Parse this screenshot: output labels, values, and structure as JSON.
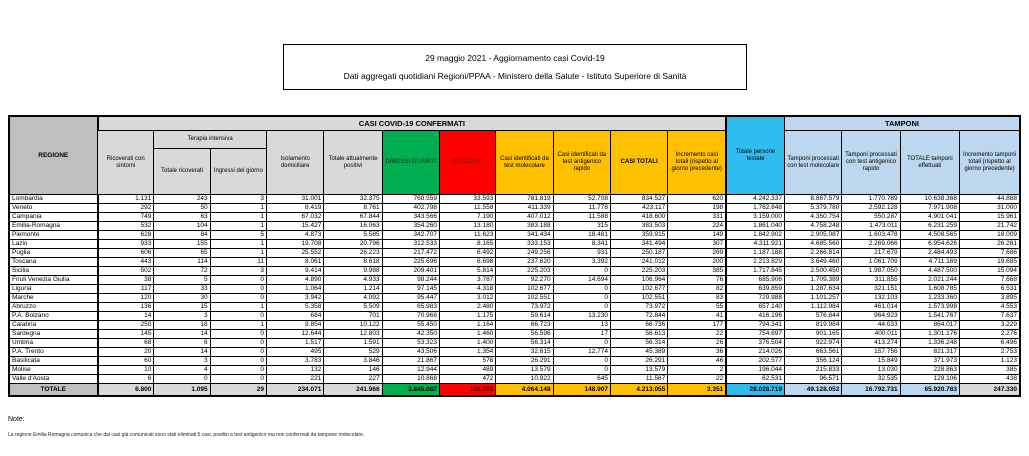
{
  "title": "29 maggio 2021 - Aggiornamento casi Covid-19",
  "subtitle": "Dati aggregati quotidiani Regioni/PPAA - Ministero della Salute - Istituto Superiore di Sanità",
  "colors": {
    "green": "#00b050",
    "red": "#ff0000",
    "orange": "#ffc000",
    "cyan": "#2fbdef",
    "light_blue": "#bdd7ee",
    "header_gray": "#d9d9d9",
    "dark_gray": "#bfbfbf"
  },
  "table": {
    "group_headers": {
      "casi": "CASI COVID-19 CONFERMATI",
      "tamponi": "TAMPONI"
    },
    "columns": {
      "regione": "REGIONE",
      "ricoverati": "Ricoverati con sintomi",
      "terapia_intensiva": "Terapia intensiva",
      "totale_ricoverati": "Totale ricoverati",
      "ingressi_giorno": "Ingressi del giorno",
      "isolamento": "Isolamento domiciliare",
      "attualmente_positivi": "Totale attualmente positivi",
      "dimessi_guariti": "DIMESSI GUARITI",
      "deceduti": "DECEDUTI",
      "casi_molecolare": "Casi identificati da test molecolare",
      "casi_antigenico": "Casi identificati da test antigenico rapido",
      "casi_totali": "CASI TOTALI",
      "incremento_casi": "Incremento casi totali (rispetto al giorno precedente)",
      "persone_testate": "Totale persone testate",
      "tamponi_molecolare": "Tamponi processati con test molecolare",
      "tamponi_antigenico": "Tamponi processati con test antigenico rapido",
      "totale_tamponi": "TOTALE tamponi effettuati",
      "incremento_tamponi": "Incremento tamponi totali (rispetto al giorno precedente)"
    },
    "col_keys": [
      "ricoverati_con_sintomi",
      "terapia_intensiva_totale",
      "terapia_intensiva_ingressi",
      "isolamento_domiciliare",
      "totale_attualmente_positivi",
      "dimessi_guariti",
      "deceduti",
      "casi_test_molecolare",
      "casi_test_antigenico",
      "casi_totali",
      "incremento_casi_totali",
      "totale_persone_testate",
      "tamponi_test_molecolare",
      "tamponi_test_antigenico",
      "totale_tamponi_effettuati",
      "incremento_tamponi_totali"
    ],
    "rows": [
      {
        "regione": "Lombardia",
        "values": [
          "1.131",
          "243",
          "3",
          "31.001",
          "32.375",
          "768.559",
          "33.593",
          "781.819",
          "52.708",
          "834.527",
          "620",
          "4.242.337",
          "8.867.579",
          "1.770.789",
          "10.638.368",
          "44.888"
        ]
      },
      {
        "regione": "Veneto",
        "values": [
          "292",
          "50",
          "1",
          "8.419",
          "8.761",
          "402.798",
          "11.558",
          "411.339",
          "11.778",
          "423.117",
          "198",
          "1.762.848",
          "5.379.780",
          "2.592.128",
          "7.971.908",
          "31.000"
        ]
      },
      {
        "regione": "Campania",
        "values": [
          "749",
          "63",
          "1",
          "67.032",
          "67.844",
          "343.566",
          "7.190",
          "407.012",
          "11.588",
          "418.600",
          "331",
          "3.159.000",
          "4.350.754",
          "550.287",
          "4.901.041",
          "15.961"
        ]
      },
      {
        "regione": "Emilia-Romagna",
        "values": [
          "532",
          "104",
          "1",
          "15.427",
          "16.063",
          "354.260",
          "13.180",
          "383.188",
          "315",
          "383.503",
          "224",
          "1.861.040",
          "4.758.248",
          "1.473.011",
          "6.231.259",
          "21.742"
        ]
      },
      {
        "regione": "Piemonte",
        "values": [
          "628",
          "84",
          "5",
          "4.873",
          "5.585",
          "342.707",
          "11.623",
          "341.434",
          "18.481",
          "359.915",
          "149",
          "1.842.902",
          "2.905.087",
          "1.603.478",
          "4.508.565",
          "18.009"
        ]
      },
      {
        "regione": "Lazio",
        "values": [
          "933",
          "155",
          "1",
          "19.708",
          "20.796",
          "312.533",
          "8.165",
          "333.153",
          "8.341",
          "341.494",
          "307",
          "4.311.921",
          "4.685.560",
          "2.269.066",
          "6.954.626",
          "26.281"
        ]
      },
      {
        "regione": "Puglia",
        "values": [
          "606",
          "65",
          "1",
          "25.552",
          "26.223",
          "217.472",
          "6.492",
          "249.256",
          "931",
          "250.187",
          "269",
          "1.187.188",
          "2.266.814",
          "217.679",
          "2.484.493",
          "7.686"
        ]
      },
      {
        "regione": "Toscana",
        "values": [
          "443",
          "114",
          "11",
          "8.061",
          "8.618",
          "225.696",
          "6.698",
          "237.620",
          "3.392",
          "241.012",
          "200",
          "2.213.829",
          "3.649.460",
          "1.061.709",
          "4.711.169",
          "19.685"
        ]
      },
      {
        "regione": "Sicilia",
        "values": [
          "502",
          "72",
          "3",
          "9.414",
          "9.988",
          "209.401",
          "5.814",
          "225.203",
          "0",
          "225.203",
          "385",
          "1.717.845",
          "2.500.450",
          "1.987.050",
          "4.487.500",
          "15.094"
        ]
      },
      {
        "regione": "Friuli Venezia Giulia",
        "values": [
          "38",
          "5",
          "0",
          "4.890",
          "4.933",
          "98.244",
          "3.787",
          "92.270",
          "14.694",
          "106.964",
          "76",
          "685.906",
          "1.709.389",
          "311.855",
          "2.021.244",
          "7.668"
        ]
      },
      {
        "regione": "Liguria",
        "values": [
          "117",
          "33",
          "0",
          "1.064",
          "1.214",
          "97.145",
          "4.318",
          "102.677",
          "0",
          "102.677",
          "82",
          "639.859",
          "1.287.634",
          "321.151",
          "1.608.785",
          "6.531"
        ]
      },
      {
        "regione": "Marche",
        "values": [
          "120",
          "30",
          "0",
          "3.942",
          "4.092",
          "95.447",
          "3.012",
          "102.551",
          "0",
          "102.551",
          "83",
          "729.988",
          "1.101.257",
          "132.103",
          "1.233.360",
          "3.895"
        ]
      },
      {
        "regione": "Abruzzo",
        "values": [
          "136",
          "15",
          "1",
          "5.358",
          "5.509",
          "65.983",
          "2.480",
          "73.972",
          "0",
          "73.972",
          "55",
          "657.140",
          "1.112.984",
          "461.014",
          "1.573.998",
          "4.553"
        ]
      },
      {
        "regione": "P.A. Bolzano",
        "values": [
          "14",
          "3",
          "0",
          "684",
          "701",
          "70.968",
          "1.175",
          "59.614",
          "13.230",
          "72.844",
          "41",
          "416.196",
          "576.844",
          "964.923",
          "1.541.767",
          "7.637"
        ]
      },
      {
        "regione": "Calabria",
        "values": [
          "250",
          "18",
          "1",
          "9.854",
          "10.122",
          "55.450",
          "1.164",
          "66.723",
          "13",
          "66.736",
          "177",
          "794.341",
          "819.984",
          "44.033",
          "864.017",
          "3.229"
        ]
      },
      {
        "regione": "Sardegna",
        "values": [
          "145",
          "14",
          "0",
          "12.644",
          "12.803",
          "42.350",
          "1.460",
          "56.596",
          "17",
          "56.613",
          "22",
          "754.697",
          "901.165",
          "400.011",
          "1.301.176",
          "2.276"
        ]
      },
      {
        "regione": "Umbria",
        "values": [
          "68",
          "6",
          "0",
          "1.517",
          "1.591",
          "53.323",
          "1.400",
          "56.314",
          "0",
          "56.314",
          "26",
          "376.504",
          "922.974",
          "413.274",
          "1.336.248",
          "6.496"
        ]
      },
      {
        "regione": "P.A. Trento",
        "values": [
          "20",
          "14",
          "0",
          "495",
          "529",
          "43.506",
          "1.354",
          "32.615",
          "12.774",
          "45.389",
          "36",
          "214.026",
          "663.561",
          "157.756",
          "821.317",
          "2.753"
        ]
      },
      {
        "regione": "Basilicata",
        "values": [
          "60",
          "3",
          "0",
          "3.783",
          "3.846",
          "21.867",
          "578",
          "26.291",
          "0",
          "26.291",
          "46",
          "202.577",
          "356.124",
          "15.849",
          "371.973",
          "1.123"
        ]
      },
      {
        "regione": "Molise",
        "values": [
          "10",
          "4",
          "0",
          "132",
          "146",
          "12.944",
          "489",
          "13.579",
          "0",
          "13.579",
          "2",
          "196.044",
          "215.833",
          "13.030",
          "228.863",
          "385"
        ]
      },
      {
        "regione": "Valle d'Aosta",
        "values": [
          "6",
          "0",
          "0",
          "221",
          "227",
          "10.868",
          "472",
          "10.922",
          "645",
          "11.567",
          "22",
          "62.531",
          "96.571",
          "32.535",
          "129.106",
          "438"
        ]
      }
    ],
    "total_row": {
      "regione": "TOTALE",
      "values": [
        "6.800",
        "1.095",
        "29",
        "234.071",
        "241.966",
        "3.845.087",
        "126.002",
        "4.064.148",
        "148.907",
        "4.213.055",
        "3.351",
        "28.028.719",
        "49.128.052",
        "16.792.731",
        "65.920.783",
        "247.330"
      ]
    }
  },
  "notes": {
    "label": "Note:",
    "text": "La regione Emilia Romagna comunica che dai casi già comunicati sono stati eliminati 5 casi, positivi a test antigenico ma non confermati da tampone molecolare."
  }
}
